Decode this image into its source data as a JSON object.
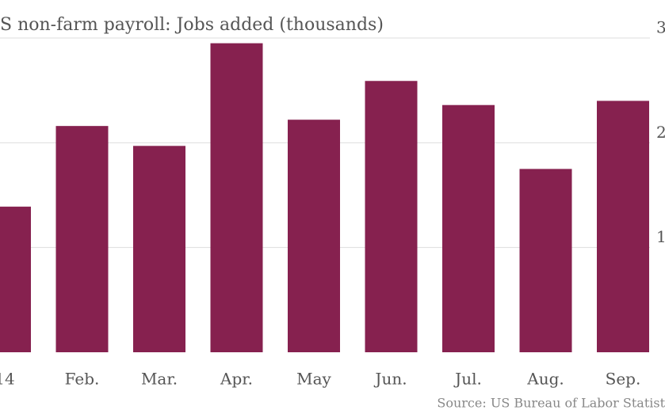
{
  "chart_data": {
    "type": "bar",
    "title": "S non-farm payroll: Jobs added (thousands)",
    "source": "Source: US Bureau of Labor Statist",
    "categories": [
      "14",
      "Feb.",
      "Mar.",
      "Apr.",
      "May",
      "Jun.",
      "Jul.",
      "Aug.",
      "Sep."
    ],
    "values": [
      139,
      216,
      197,
      295,
      222,
      259,
      236,
      175,
      240
    ],
    "color": "#86214f",
    "ylim": [
      0,
      300
    ],
    "yticks": [
      {
        "value": 100,
        "label": "1"
      },
      {
        "value": 200,
        "label": "2"
      },
      {
        "value": 300,
        "label": "3"
      }
    ],
    "grid": true
  }
}
